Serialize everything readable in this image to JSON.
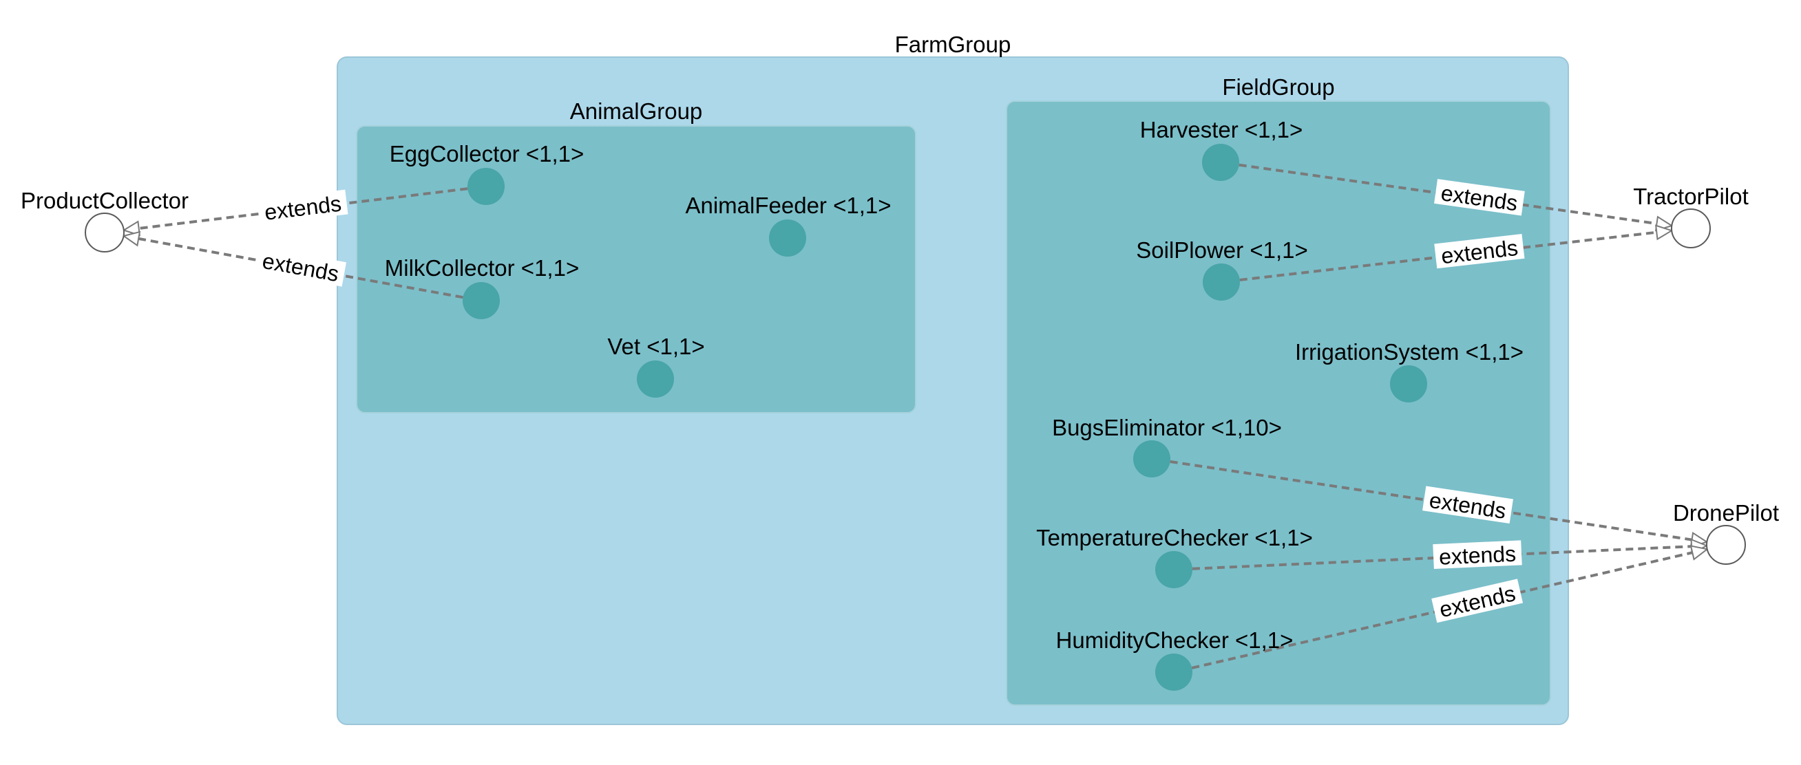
{
  "colors": {
    "farm_fill": "#acd8ea",
    "farm_stroke": "#9cc6d8",
    "subgroup_fill": "#7bbfc9",
    "subgroup_stroke": "#a6d2db",
    "node_fill": "#48a5a8",
    "edge": "#7a7a7a",
    "text": "#000000"
  },
  "groups": [
    {
      "id": "farm",
      "label": "FarmGroup"
    },
    {
      "id": "animal",
      "label": "AnimalGroup"
    },
    {
      "id": "field",
      "label": "FieldGroup"
    }
  ],
  "nodes": [
    {
      "id": "egg",
      "group": "animal",
      "label": "EggCollector <1,1>"
    },
    {
      "id": "feeder",
      "group": "animal",
      "label": "AnimalFeeder <1,1>"
    },
    {
      "id": "milk",
      "group": "animal",
      "label": "MilkCollector <1,1>"
    },
    {
      "id": "vet",
      "group": "animal",
      "label": "Vet <1,1>"
    },
    {
      "id": "harvester",
      "group": "field",
      "label": "Harvester <1,1>"
    },
    {
      "id": "plower",
      "group": "field",
      "label": "SoilPlower <1,1>"
    },
    {
      "id": "irrigation",
      "group": "field",
      "label": "IrrigationSystem <1,1>"
    },
    {
      "id": "bugs",
      "group": "field",
      "label": "BugsEliminator <1,10>"
    },
    {
      "id": "temp",
      "group": "field",
      "label": "TemperatureChecker <1,1>"
    },
    {
      "id": "humidity",
      "group": "field",
      "label": "HumidityChecker <1,1>"
    }
  ],
  "roles": [
    {
      "id": "product",
      "label": "ProductCollector"
    },
    {
      "id": "tractor",
      "label": "TractorPilot"
    },
    {
      "id": "drone",
      "label": "DronePilot"
    }
  ],
  "edges": [
    {
      "from": "egg",
      "to": "product",
      "label": "extends"
    },
    {
      "from": "milk",
      "to": "product",
      "label": "extends"
    },
    {
      "from": "harvester",
      "to": "tractor",
      "label": "extends"
    },
    {
      "from": "plower",
      "to": "tractor",
      "label": "extends"
    },
    {
      "from": "bugs",
      "to": "drone",
      "label": "extends"
    },
    {
      "from": "temp",
      "to": "drone",
      "label": "extends"
    },
    {
      "from": "humidity",
      "to": "drone",
      "label": "extends"
    }
  ]
}
